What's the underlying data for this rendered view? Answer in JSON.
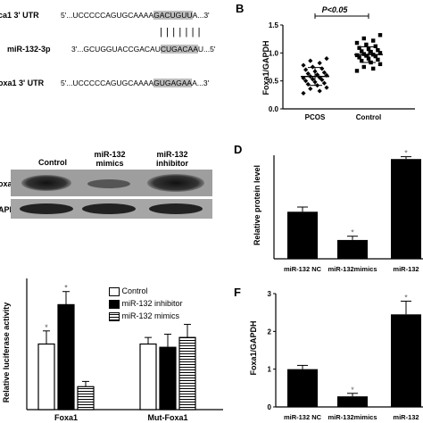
{
  "panel_a": {
    "rows": [
      {
        "label": "ca1 3' UTR",
        "prefix": "5'...UCCCCCAGUGCAAAA",
        "highlight": "GACUGUU",
        "suffix": "A...3'"
      },
      {
        "label": "miR-132-3p",
        "prefix": "3'...GCUGGUACCGACAU",
        "highlight": "CUGACAA",
        "suffix": "U...5'"
      },
      {
        "label": "oxa1 3' UTR",
        "prefix": "5'...UCCCCCAGUGCAAAA",
        "highlight": "GUGAGAA",
        "suffix": "A...3'"
      }
    ],
    "pairing": "| | | | | | |"
  },
  "panel_b": {
    "letter": "B",
    "significance": "P<0.05"
  },
  "panel_c": {
    "columns": [
      "Control",
      "miR-132\nmimics",
      "miR-132\ninhibitor"
    ],
    "rows": [
      "oxa1",
      "APDH"
    ]
  },
  "panel_d": {
    "letter": "D"
  },
  "panel_e": {
    "legend": [
      {
        "label": "Control",
        "fill": "#ffffff"
      },
      {
        "label": "miR-132 inhibitor",
        "fill": "#000000"
      },
      {
        "label": "miR-132 mimics",
        "fill": "stripes"
      }
    ]
  },
  "panel_f": {
    "letter": "F"
  },
  "chart_data": [
    {
      "id": "B",
      "type": "scatter",
      "ylabel": "Foxa1/GAPDH",
      "ylim": [
        0.0,
        1.5
      ],
      "yticks": [
        "0.0",
        "0.5",
        "1.0",
        "1.5"
      ],
      "categories": [
        "PCOS",
        "Control"
      ],
      "mean": [
        0.58,
        0.97
      ],
      "sd": [
        0.16,
        0.14
      ],
      "points": [
        [
          0.28,
          0.32,
          0.36,
          0.38,
          0.42,
          0.44,
          0.46,
          0.48,
          0.5,
          0.52,
          0.53,
          0.55,
          0.56,
          0.58,
          0.6,
          0.61,
          0.63,
          0.65,
          0.67,
          0.7,
          0.72,
          0.75,
          0.78,
          0.82,
          0.86,
          0.9
        ],
        [
          0.68,
          0.72,
          0.75,
          0.8,
          0.83,
          0.86,
          0.88,
          0.9,
          0.92,
          0.94,
          0.95,
          0.96,
          0.97,
          0.98,
          1.0,
          1.02,
          1.03,
          1.05,
          1.07,
          1.09,
          1.12,
          1.15,
          1.18,
          1.22,
          1.26,
          1.32
        ]
      ]
    },
    {
      "id": "D",
      "type": "bar",
      "ylabel": "Relative protein level",
      "categories": [
        "miR-132 NC",
        "miR-132mimics",
        "miR-132"
      ],
      "values": [
        1.0,
        0.4,
        2.12
      ],
      "errors": [
        0.1,
        0.08,
        0.05
      ],
      "ylim": [
        0,
        2.2
      ],
      "significance": [
        "",
        "*",
        "*"
      ]
    },
    {
      "id": "E",
      "type": "bar",
      "ylabel": "Relative luciferase activity",
      "categories": [
        "Foxa1",
        "Mut-Foxa1"
      ],
      "series": [
        {
          "name": "Control",
          "values": [
            1.0,
            1.0
          ],
          "errors": [
            0.2,
            0.1
          ]
        },
        {
          "name": "miR-132 inhibitor",
          "values": [
            1.6,
            0.95
          ],
          "errors": [
            0.2,
            0.2
          ]
        },
        {
          "name": "miR-132 mimics",
          "values": [
            0.35,
            1.1
          ],
          "errors": [
            0.08,
            0.2
          ]
        }
      ],
      "ylim": [
        0,
        2.0
      ],
      "significance": [
        "*",
        "*",
        ""
      ]
    },
    {
      "id": "F",
      "type": "bar",
      "ylabel": "Foxa1/GAPDH",
      "categories": [
        "miR-132 NC",
        "miR-132mimics",
        "miR-132"
      ],
      "values": [
        1.0,
        0.28,
        2.45
      ],
      "errors": [
        0.1,
        0.08,
        0.35
      ],
      "ylim": [
        0,
        3.0
      ],
      "yticks": [
        "0",
        "1",
        "2",
        "3"
      ],
      "significance": [
        "",
        "*",
        "*"
      ]
    }
  ]
}
